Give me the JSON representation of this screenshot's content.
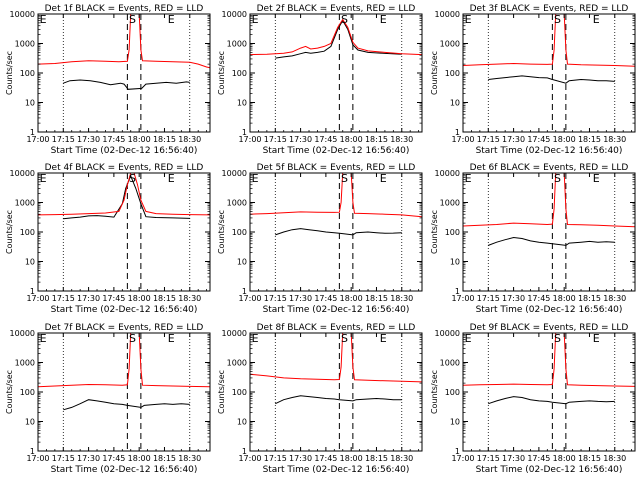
{
  "figure": {
    "xtick_labels": [
      "17:00",
      "17:15",
      "17:30",
      "17:45",
      "18:00",
      "18:15",
      "18:30"
    ],
    "ytick_labels": [
      "1",
      "10",
      "100",
      "1000",
      "10000"
    ],
    "xlabel": "Start Time (02-Dec-12 16:56:40)",
    "ylabel": "Counts/sec",
    "marker_labels": {
      "left": "E",
      "mid": "S",
      "right": "E"
    },
    "colors": {
      "events": "#000000",
      "lld": "#ff0000"
    }
  },
  "chart_data": [
    {
      "type": "line",
      "title": "Det 1f BLACK = Events, RED = LLD",
      "xlim_min": [
        0,
        102
      ],
      "ylim": [
        1,
        10000
      ],
      "yscale": "log",
      "dotted_x_min": [
        15,
        90
      ],
      "dashed_x_min": [
        53,
        61
      ],
      "marker_x_min": {
        "left": 1,
        "mid": 56,
        "right": 79
      },
      "series": [
        {
          "name": "Events",
          "color": "#000000",
          "x": [
            15,
            19,
            25,
            31,
            37,
            43,
            49,
            51,
            53.5,
            61.5,
            64,
            70,
            76,
            82,
            88,
            90
          ],
          "y": [
            45,
            55,
            58,
            55,
            48,
            40,
            45,
            42,
            28,
            30,
            42,
            45,
            48,
            45,
            50,
            48
          ]
        },
        {
          "name": "LLD",
          "color": "#ff0000",
          "x": [
            0,
            10,
            20,
            30,
            40,
            48,
            53,
            54,
            55,
            60,
            61,
            62,
            70,
            80,
            90,
            95,
            100,
            102
          ],
          "y": [
            200,
            210,
            240,
            260,
            250,
            240,
            250,
            600,
            10000,
            10000,
            600,
            260,
            250,
            240,
            230,
            200,
            160,
            150
          ]
        }
      ]
    },
    {
      "type": "line",
      "title": "Det 2f BLACK = Events, RED = LLD",
      "xlim_min": [
        0,
        102
      ],
      "ylim": [
        1,
        10000
      ],
      "yscale": "log",
      "dotted_x_min": [
        15,
        90
      ],
      "dashed_x_min": [
        53,
        61
      ],
      "marker_x_min": {
        "left": 1,
        "mid": 56,
        "right": 79
      },
      "series": [
        {
          "name": "Events",
          "color": "#000000",
          "x": [
            15,
            20,
            25,
            30,
            33,
            36,
            40,
            44,
            48,
            52,
            55,
            58,
            61,
            64,
            70,
            80,
            90
          ],
          "y": [
            320,
            350,
            380,
            450,
            500,
            470,
            500,
            550,
            800,
            3000,
            6000,
            3000,
            900,
            600,
            500,
            460,
            430
          ]
        },
        {
          "name": "LLD",
          "color": "#ff0000",
          "x": [
            0,
            10,
            20,
            25,
            30,
            33,
            36,
            40,
            44,
            48,
            52,
            55,
            58,
            61,
            64,
            70,
            80,
            90,
            102
          ],
          "y": [
            420,
            430,
            470,
            520,
            700,
            800,
            650,
            700,
            800,
            1000,
            3500,
            6500,
            3500,
            1100,
            700,
            560,
            500,
            450,
            420
          ]
        }
      ]
    },
    {
      "type": "line",
      "title": "Det 3f BLACK = Events, RED = LLD",
      "xlim_min": [
        0,
        102
      ],
      "ylim": [
        1,
        10000
      ],
      "yscale": "log",
      "dotted_x_min": [
        15,
        90
      ],
      "dashed_x_min": [
        53,
        61
      ],
      "marker_x_min": {
        "left": 1,
        "mid": 56,
        "right": 79
      },
      "series": [
        {
          "name": "Events",
          "color": "#000000",
          "x": [
            15,
            20,
            25,
            30,
            35,
            40,
            45,
            50,
            53,
            61,
            63,
            70,
            75,
            80,
            85,
            90
          ],
          "y": [
            60,
            65,
            70,
            75,
            80,
            75,
            70,
            68,
            60,
            45,
            55,
            60,
            58,
            55,
            55,
            52
          ]
        },
        {
          "name": "LLD",
          "color": "#ff0000",
          "x": [
            0,
            10,
            20,
            30,
            40,
            50,
            53,
            54,
            55,
            60,
            61,
            62,
            70,
            80,
            90,
            102
          ],
          "y": [
            180,
            190,
            200,
            210,
            200,
            195,
            200,
            600,
            10000,
            10000,
            600,
            200,
            190,
            185,
            180,
            170
          ]
        }
      ]
    },
    {
      "type": "line",
      "title": "Det 4f BLACK = Events, RED = LLD",
      "xlim_min": [
        0,
        102
      ],
      "ylim": [
        1,
        10000
      ],
      "yscale": "log",
      "dotted_x_min": [
        15,
        90
      ],
      "dashed_x_min": [
        53,
        61
      ],
      "marker_x_min": {
        "left": 1,
        "mid": 56,
        "right": 79
      },
      "series": [
        {
          "name": "Events",
          "color": "#000000",
          "x": [
            15,
            20,
            25,
            30,
            35,
            40,
            45,
            50,
            52,
            55,
            58,
            61,
            64,
            70,
            80,
            90
          ],
          "y": [
            280,
            300,
            320,
            350,
            360,
            340,
            320,
            900,
            3000,
            8000,
            3000,
            900,
            330,
            310,
            300,
            290
          ]
        },
        {
          "name": "LLD",
          "color": "#ff0000",
          "x": [
            0,
            10,
            20,
            30,
            40,
            48,
            51,
            53,
            55,
            57,
            59,
            61,
            64,
            70,
            80,
            90,
            102
          ],
          "y": [
            380,
            390,
            400,
            420,
            440,
            500,
            1200,
            4000,
            10000,
            10000,
            4000,
            1200,
            500,
            420,
            400,
            390,
            380
          ]
        }
      ]
    },
    {
      "type": "line",
      "title": "Det 5f BLACK = Events, RED = LLD",
      "xlim_min": [
        0,
        102
      ],
      "ylim": [
        1,
        10000
      ],
      "yscale": "log",
      "dotted_x_min": [
        15,
        90
      ],
      "dashed_x_min": [
        53,
        61
      ],
      "marker_x_min": {
        "left": 1,
        "mid": 56,
        "right": 79
      },
      "series": [
        {
          "name": "Events",
          "color": "#000000",
          "x": [
            15,
            20,
            25,
            30,
            35,
            40,
            45,
            50,
            53,
            61,
            63,
            70,
            75,
            80,
            85,
            90
          ],
          "y": [
            80,
            100,
            120,
            130,
            120,
            110,
            100,
            95,
            90,
            80,
            95,
            100,
            95,
            90,
            92,
            95
          ]
        },
        {
          "name": "LLD",
          "color": "#ff0000",
          "x": [
            0,
            10,
            20,
            30,
            40,
            50,
            53,
            54,
            55,
            60,
            61,
            62,
            70,
            80,
            90,
            102
          ],
          "y": [
            400,
            420,
            450,
            480,
            470,
            460,
            470,
            1000,
            10000,
            10000,
            1000,
            430,
            420,
            400,
            380,
            330
          ]
        }
      ]
    },
    {
      "type": "line",
      "title": "Det 6f BLACK = Events, RED = LLD",
      "xlim_min": [
        0,
        102
      ],
      "ylim": [
        1,
        10000
      ],
      "yscale": "log",
      "dotted_x_min": [
        15,
        90
      ],
      "dashed_x_min": [
        53,
        61
      ],
      "marker_x_min": {
        "left": 1,
        "mid": 56,
        "right": 79
      },
      "series": [
        {
          "name": "Events",
          "color": "#000000",
          "x": [
            15,
            20,
            25,
            30,
            35,
            40,
            45,
            50,
            53,
            61,
            63,
            70,
            75,
            80,
            85,
            90
          ],
          "y": [
            35,
            45,
            55,
            65,
            60,
            50,
            45,
            42,
            40,
            35,
            42,
            45,
            48,
            45,
            47,
            45
          ]
        },
        {
          "name": "LLD",
          "color": "#ff0000",
          "x": [
            0,
            10,
            20,
            30,
            40,
            50,
            53,
            54,
            55,
            60,
            61,
            62,
            70,
            80,
            90,
            102
          ],
          "y": [
            160,
            170,
            180,
            200,
            190,
            180,
            185,
            600,
            10000,
            10000,
            600,
            180,
            175,
            170,
            160,
            150
          ]
        }
      ]
    },
    {
      "type": "line",
      "title": "Det 7f BLACK = Events, RED = LLD",
      "xlim_min": [
        0,
        102
      ],
      "ylim": [
        1,
        10000
      ],
      "yscale": "log",
      "dotted_x_min": [
        15,
        90
      ],
      "dashed_x_min": [
        53,
        61
      ],
      "marker_x_min": {
        "left": 1,
        "mid": 56,
        "right": 79
      },
      "series": [
        {
          "name": "Events",
          "color": "#000000",
          "x": [
            15,
            20,
            25,
            30,
            35,
            40,
            45,
            50,
            53,
            61,
            63,
            70,
            75,
            80,
            85,
            90
          ],
          "y": [
            25,
            30,
            40,
            55,
            50,
            45,
            40,
            38,
            35,
            30,
            35,
            38,
            40,
            38,
            40,
            38
          ]
        },
        {
          "name": "LLD",
          "color": "#ff0000",
          "x": [
            0,
            10,
            20,
            30,
            40,
            50,
            53,
            54,
            55,
            60,
            61,
            62,
            70,
            80,
            90,
            102
          ],
          "y": [
            150,
            160,
            170,
            180,
            175,
            170,
            175,
            600,
            10000,
            10000,
            600,
            170,
            165,
            160,
            155,
            150
          ]
        }
      ]
    },
    {
      "type": "line",
      "title": "Det 8f BLACK = Events, RED = LLD",
      "xlim_min": [
        0,
        102
      ],
      "ylim": [
        1,
        10000
      ],
      "yscale": "log",
      "dotted_x_min": [
        15,
        90
      ],
      "dashed_x_min": [
        53,
        61
      ],
      "marker_x_min": {
        "left": 1,
        "mid": 56,
        "right": 79
      },
      "series": [
        {
          "name": "Events",
          "color": "#000000",
          "x": [
            15,
            20,
            25,
            30,
            35,
            40,
            45,
            50,
            53,
            61,
            63,
            70,
            75,
            80,
            85,
            90
          ],
          "y": [
            40,
            55,
            65,
            75,
            70,
            65,
            60,
            58,
            55,
            50,
            55,
            58,
            60,
            58,
            55,
            55
          ]
        },
        {
          "name": "LLD",
          "color": "#ff0000",
          "x": [
            0,
            10,
            20,
            30,
            40,
            50,
            53,
            54,
            55,
            60,
            61,
            62,
            70,
            80,
            90,
            102
          ],
          "y": [
            400,
            350,
            300,
            280,
            270,
            260,
            265,
            700,
            10000,
            10000,
            700,
            260,
            250,
            240,
            230,
            220
          ]
        }
      ]
    },
    {
      "type": "line",
      "title": "Det 9f BLACK = Events, RED = LLD",
      "xlim_min": [
        0,
        102
      ],
      "ylim": [
        1,
        10000
      ],
      "yscale": "log",
      "dotted_x_min": [
        15,
        90
      ],
      "dashed_x_min": [
        53,
        61
      ],
      "marker_x_min": {
        "left": 1,
        "mid": 56,
        "right": 79
      },
      "series": [
        {
          "name": "Events",
          "color": "#000000",
          "x": [
            15,
            20,
            25,
            30,
            35,
            40,
            45,
            50,
            53,
            61,
            63,
            70,
            75,
            80,
            85,
            90
          ],
          "y": [
            40,
            50,
            60,
            70,
            65,
            55,
            50,
            48,
            45,
            40,
            45,
            48,
            50,
            48,
            47,
            48
          ]
        },
        {
          "name": "LLD",
          "color": "#ff0000",
          "x": [
            0,
            10,
            20,
            30,
            40,
            50,
            53,
            54,
            55,
            60,
            61,
            62,
            70,
            80,
            90,
            102
          ],
          "y": [
            170,
            175,
            180,
            185,
            180,
            175,
            180,
            600,
            10000,
            10000,
            600,
            175,
            170,
            165,
            160,
            155
          ]
        }
      ]
    }
  ]
}
